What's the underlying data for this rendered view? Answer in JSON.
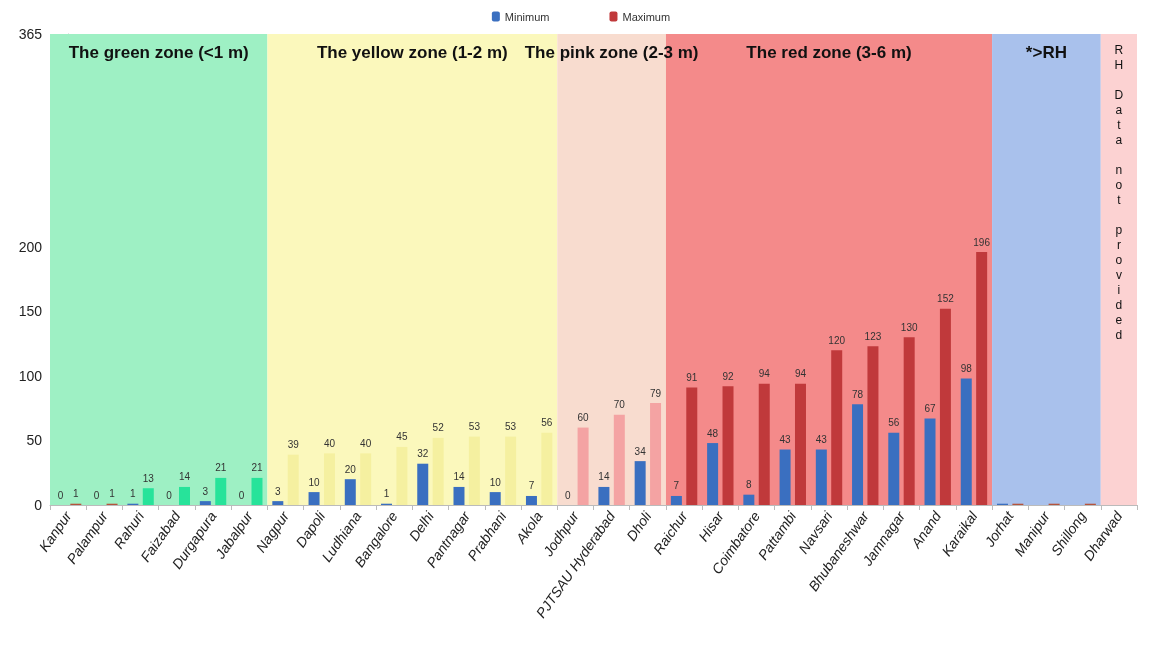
{
  "chart_data": {
    "type": "bar",
    "categories": [
      "Kanpur",
      "Palampur",
      "Rahuri",
      "Faizabad",
      "Durgapura",
      "Jabalpur",
      "Nagpur",
      "Dapoli",
      "Ludhiana",
      "Bangalore",
      "Delhi",
      "Pantnagar",
      "Prabhani",
      "Akola",
      "Jodhpur",
      "PJTSAU Hyderabad",
      "Dholi",
      "Raichur",
      "Hisar",
      "Coimbatore",
      "Pattambi",
      "Navsari",
      "Bhubaneshwar",
      "Jamnagar",
      "Anand",
      "Karaikal",
      "Jorhat",
      "Manipur",
      "Shillong",
      "Dharwad"
    ],
    "series": [
      {
        "name": "Minimum",
        "color": "#3a6fc0",
        "values": [
          0,
          0,
          1,
          0,
          3,
          0,
          3,
          10,
          20,
          1,
          32,
          14,
          10,
          7,
          0,
          14,
          34,
          7,
          48,
          8,
          43,
          43,
          78,
          56,
          67,
          98,
          1,
          0,
          0,
          null
        ],
        "value_labels": [
          "0",
          "0",
          "1",
          "0",
          "3",
          "0",
          "3",
          "10",
          "20",
          "1",
          "32",
          "14",
          "10",
          "7",
          "0",
          "14",
          "34",
          "7",
          "48",
          "8",
          "43",
          "43",
          "78",
          "56",
          "67",
          "98",
          null,
          null,
          null,
          null
        ]
      },
      {
        "name": "Maximum",
        "color": "#c0393b",
        "colors": [
          "#b5533c",
          "#b5533c",
          "#27e39a",
          "#27e39a",
          "#27e39a",
          "#27e39a",
          "#f5f0a0",
          "#f5f0a0",
          "#f5f0a0",
          "#f5f0a0",
          "#f5f0a0",
          "#f5f0a0",
          "#f5f0a0",
          "#f5f0a0",
          "#f4a3a3",
          "#f4a3a3",
          "#f4a3a3",
          "#c0393b",
          "#c0393b",
          "#c0393b",
          "#c0393b",
          "#c0393b",
          "#c0393b",
          "#c0393b",
          "#c0393b",
          "#c0393b",
          "#b5533c",
          "#b5533c",
          "#b5533c",
          null
        ],
        "values": [
          1,
          1,
          13,
          14,
          21,
          21,
          39,
          40,
          40,
          45,
          52,
          53,
          53,
          56,
          60,
          70,
          79,
          91,
          92,
          94,
          94,
          120,
          123,
          130,
          152,
          196,
          1,
          1,
          1,
          null
        ],
        "value_labels": [
          "1",
          "1",
          "13",
          "14",
          "21",
          "21",
          "39",
          "40",
          "40",
          "45",
          "52",
          "53",
          "53",
          "56",
          "60",
          "70",
          "79",
          "91",
          "92",
          "94",
          "94",
          "120",
          "123",
          "130",
          "152",
          "196",
          null,
          null,
          null,
          null
        ]
      }
    ],
    "ylim": [
      0,
      365
    ],
    "yticks": [
      0,
      50,
      100,
      150,
      200,
      365
    ],
    "legend": "top",
    "bands": [
      {
        "axis": "x",
        "from": "Kanpur",
        "to": "Jabalpur",
        "label": "The green zone (<1 m)",
        "color": "#9ef0c4"
      },
      {
        "axis": "x",
        "from": "Nagpur",
        "to": "Akola",
        "label": "The yellow zone (1-2 m)",
        "color": "#fbf8bc"
      },
      {
        "axis": "x",
        "from": "Jodhpur",
        "to": "Dholi",
        "label": "The pink zone (2-3 m)",
        "color": "#f8dccf"
      },
      {
        "axis": "x",
        "from": "Raichur",
        "to": "Karaikal",
        "label": "The red zone (3-6 m)",
        "color": "#f48a8a"
      },
      {
        "axis": "x",
        "from": "Jorhat",
        "to": "Shillong",
        "label": "*>RH",
        "color": "#a9c1ec"
      },
      {
        "axis": "x",
        "from": "Dharwad",
        "to": "Dharwad",
        "label": "RH Data not provided",
        "color": "#fcd2d2"
      }
    ]
  }
}
